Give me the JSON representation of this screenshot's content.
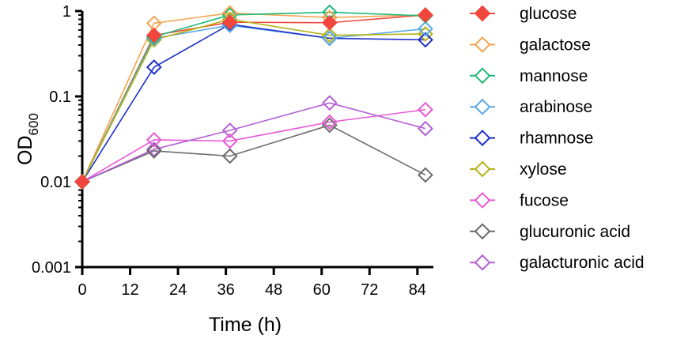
{
  "chart_data": {
    "type": "line",
    "title": "",
    "xlabel": "Time (h)",
    "ylabel": "OD",
    "ylabel_subscript": "600",
    "yscale": "log",
    "ylim": [
      0.001,
      1
    ],
    "xlim": [
      0,
      88
    ],
    "x_ticks": [
      0,
      12,
      24,
      36,
      48,
      60,
      72,
      84
    ],
    "y_ticks": [
      0.001,
      0.01,
      0.1,
      1
    ],
    "y_tick_labels": [
      "0.001",
      "0.01",
      "0.1",
      "1"
    ],
    "x": [
      0,
      18,
      37,
      62,
      86
    ],
    "legend_position": "right",
    "series": [
      {
        "name": "glucose",
        "marker": "diamond-filled",
        "color": "#f0463c",
        "values": [
          0.01,
          0.52,
          0.74,
          0.73,
          0.9
        ]
      },
      {
        "name": "galactose",
        "marker": "diamond-open",
        "color": "#f5a450",
        "values": [
          0.01,
          0.72,
          0.95,
          0.84,
          0.9
        ]
      },
      {
        "name": "mannose",
        "marker": "diamond-open",
        "color": "#1fb97a",
        "values": [
          0.01,
          0.5,
          0.9,
          0.97,
          0.88
        ]
      },
      {
        "name": "arabinose",
        "marker": "diamond-open",
        "color": "#5aa9e6",
        "values": [
          0.01,
          0.48,
          0.68,
          0.48,
          0.62
        ]
      },
      {
        "name": "rhamnose",
        "marker": "diamond-open",
        "color": "#1f30c8",
        "values": [
          0.01,
          0.22,
          0.7,
          0.48,
          0.46
        ]
      },
      {
        "name": "xylose",
        "marker": "diamond-open",
        "color": "#b3b41a",
        "values": [
          0.01,
          0.46,
          0.8,
          0.52,
          0.54
        ]
      },
      {
        "name": "fucose",
        "marker": "diamond-open",
        "color": "#e85ad6",
        "values": [
          0.01,
          0.031,
          0.03,
          0.05,
          0.07
        ]
      },
      {
        "name": "glucuronic acid",
        "marker": "diamond-open",
        "color": "#6b6b6b",
        "values": [
          0.01,
          0.023,
          0.02,
          0.046,
          0.012
        ]
      },
      {
        "name": "galacturonic acid",
        "marker": "diamond-open",
        "color": "#b25fd6",
        "values": [
          0.01,
          0.024,
          0.04,
          0.084,
          0.042
        ]
      }
    ]
  }
}
